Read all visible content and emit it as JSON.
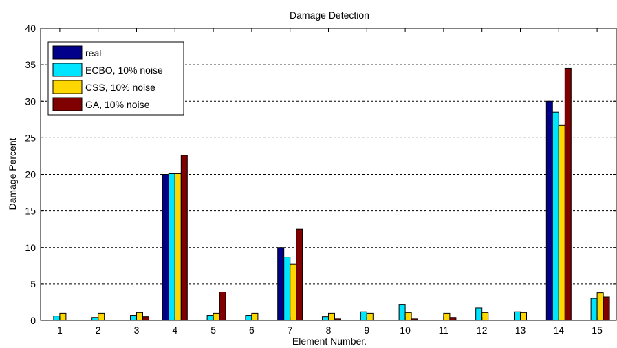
{
  "chart_data": {
    "type": "bar",
    "title": "Damage Detection",
    "xlabel": "Element Number.",
    "ylabel": "Damage Percent",
    "ylim": [
      0,
      40
    ],
    "yticks": [
      0,
      5,
      10,
      15,
      20,
      25,
      30,
      35,
      40
    ],
    "grid": "horizontal-dashed",
    "legend_position": "top-left",
    "categories": [
      "1",
      "2",
      "3",
      "4",
      "5",
      "6",
      "7",
      "8",
      "9",
      "10",
      "11",
      "12",
      "13",
      "14",
      "15"
    ],
    "series": [
      {
        "name": "real",
        "color": "#00008B",
        "values": [
          0,
          0,
          0,
          20,
          0,
          0,
          10,
          0,
          0,
          0,
          0,
          0,
          0,
          30,
          0
        ]
      },
      {
        "name": "ECBO, 10% noise",
        "color": "#00E5FF",
        "values": [
          0.6,
          0.4,
          0.7,
          20.1,
          0.7,
          0.7,
          8.7,
          0.5,
          1.2,
          2.2,
          0,
          1.7,
          1.2,
          28.5,
          3.0
        ]
      },
      {
        "name": "CSS, 10% noise",
        "color": "#FFD700",
        "values": [
          1.0,
          1.0,
          1.1,
          20.1,
          1.0,
          1.0,
          7.7,
          1.0,
          1.0,
          1.1,
          1.0,
          1.1,
          1.1,
          26.7,
          3.8
        ]
      },
      {
        "name": "GA, 10% noise",
        "color": "#800000",
        "values": [
          0,
          0,
          0.5,
          22.6,
          3.9,
          0,
          12.5,
          0.2,
          0,
          0.2,
          0.4,
          0,
          0,
          34.5,
          3.2
        ]
      }
    ]
  }
}
